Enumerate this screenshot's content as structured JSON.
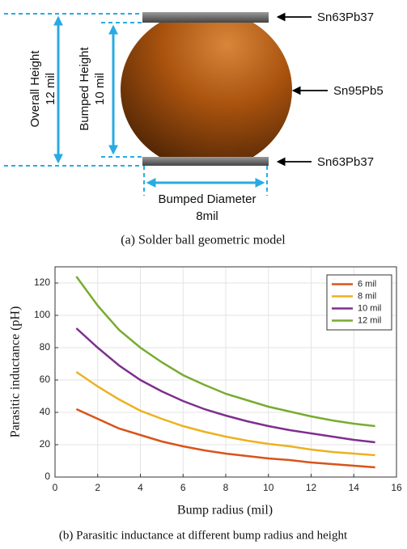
{
  "diagram": {
    "overall_height_label": "Overall Height",
    "overall_height_value": "12 mil",
    "bumped_height_label": "Bumped Height",
    "bumped_height_value": "10 mil",
    "bumped_diameter_label": "Bumped Diameter",
    "bumped_diameter_value": "8mil",
    "top_material": "Sn63Pb37",
    "ball_material": "Sn95Pb5",
    "bottom_material": "Sn63Pb37"
  },
  "captions": [
    "(a)  Solder ball geometric model",
    "(b)  Parasitic inductance at different bump radius and height"
  ],
  "chart_data": {
    "type": "line",
    "xlabel": "Bump radius (mil)",
    "ylabel": "Parasitic inductance (pH)",
    "x": [
      1,
      2,
      3,
      4,
      5,
      6,
      7,
      8,
      9,
      10,
      11,
      12,
      13,
      14,
      15
    ],
    "series": [
      {
        "name": "6 mil",
        "color": "#d95319",
        "values": [
          42,
          36,
          30,
          26,
          22,
          19,
          16.5,
          14.5,
          13,
          11.5,
          10.5,
          9,
          8,
          7,
          6
        ]
      },
      {
        "name": "8 mil",
        "color": "#edb120",
        "values": [
          65,
          56,
          48,
          41,
          36,
          31.5,
          28,
          25,
          22.5,
          20.5,
          19,
          17,
          15.5,
          14.5,
          13.5
        ]
      },
      {
        "name": "10 mil",
        "color": "#7e2f8e",
        "values": [
          92,
          80,
          69,
          60,
          53,
          47,
          42,
          38,
          34.5,
          31.5,
          29,
          27,
          25,
          23,
          21.5
        ]
      },
      {
        "name": "12 mil",
        "color": "#77ac30",
        "values": [
          124,
          106,
          91,
          80,
          71,
          63,
          57,
          51.5,
          47.5,
          43.5,
          40.5,
          37.5,
          35,
          33,
          31.5
        ]
      }
    ],
    "xlim": [
      0,
      16
    ],
    "xticks": [
      0,
      2,
      4,
      6,
      8,
      10,
      12,
      14,
      16
    ],
    "ylim": [
      0,
      130
    ],
    "yticks": [
      0,
      20,
      40,
      60,
      80,
      100,
      120
    ],
    "grid": true,
    "legend": "upper right"
  }
}
